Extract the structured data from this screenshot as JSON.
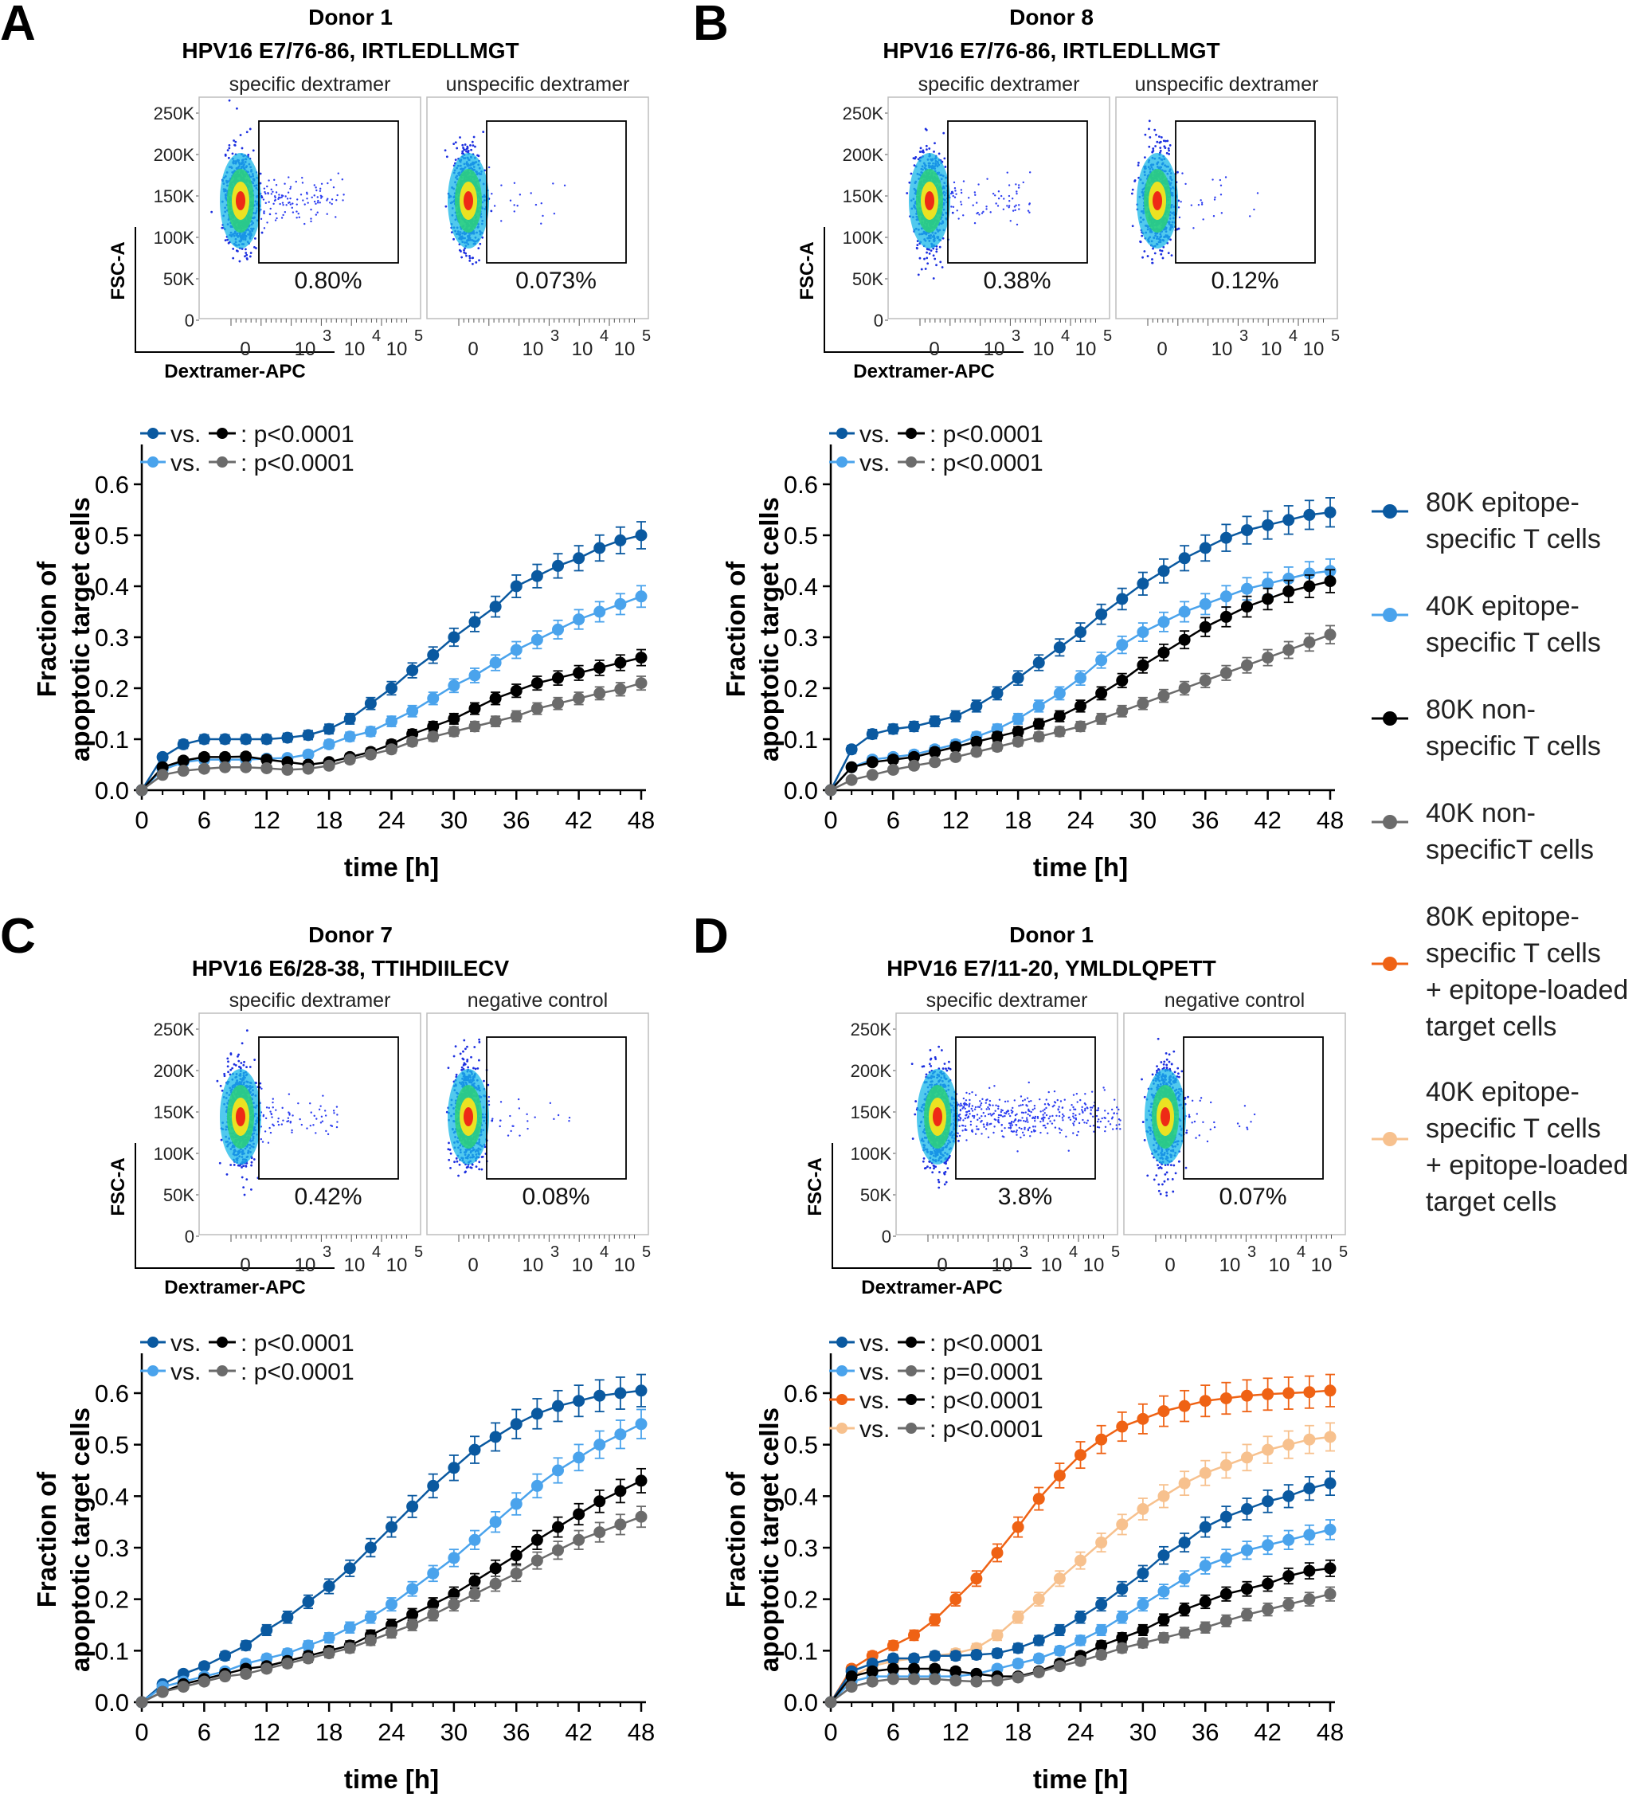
{
  "series_styles": {
    "s80_spec": {
      "color": "#0a59a0"
    },
    "s40_spec": {
      "color": "#4aa3ec"
    },
    "s80_non": {
      "color": "#000000"
    },
    "s40_non": {
      "color": "#6b6b6b"
    },
    "s80_load": {
      "color": "#ef6214"
    },
    "s40_load": {
      "color": "#f7c18e"
    }
  },
  "legend": [
    {
      "key": "s80_spec",
      "label": "80K epitope-\nspecific T cells"
    },
    {
      "key": "s40_spec",
      "label": "40K epitope-\nspecific T cells"
    },
    {
      "key": "s80_non",
      "label": "80K non-\nspecific T cells"
    },
    {
      "key": "s40_non",
      "label": "40K non-\nspecificT cells"
    },
    {
      "key": "s80_load",
      "label": "80K epitope-\nspecific T cells\n+ epitope-loaded\ntarget cells"
    },
    {
      "key": "s40_load",
      "label": "40K epitope-\nspecific T cells\n+ epitope-loaded\ntarget cells"
    }
  ],
  "flow_axes": {
    "ylabel": "FSC-A",
    "xlabel": "Dextramer-APC",
    "y_ticks": [
      "250K",
      "200K",
      "150K",
      "100K",
      "50K",
      "0"
    ],
    "x_ticks": [
      {
        "base": "0",
        "exp": ""
      },
      {
        "base": "10",
        "exp": "3"
      },
      {
        "base": "10",
        "exp": "4"
      },
      {
        "base": "10",
        "exp": "5"
      }
    ]
  },
  "panels": [
    {
      "letter": "A",
      "donor": "Donor 1",
      "epitope": "HPV16 E7/76-86, IRTLEDLLMGT",
      "flow": [
        {
          "label": "specific dextramer",
          "percent": "0.80%"
        },
        {
          "label": "unspecific dextramer",
          "percent": "0.073%"
        }
      ],
      "stats": [
        {
          "a": "s80_spec",
          "b": "s80_non",
          "text": ": p<0.0001"
        },
        {
          "a": "s40_spec",
          "b": "s40_non",
          "text": ": p<0.0001"
        }
      ]
    },
    {
      "letter": "B",
      "donor": "Donor 8",
      "epitope": "HPV16 E7/76-86, IRTLEDLLMGT",
      "flow": [
        {
          "label": "specific dextramer",
          "percent": "0.38%"
        },
        {
          "label": "unspecific dextramer",
          "percent": "0.12%"
        }
      ],
      "stats": [
        {
          "a": "s80_spec",
          "b": "s80_non",
          "text": ": p<0.0001"
        },
        {
          "a": "s40_spec",
          "b": "s40_non",
          "text": ": p<0.0001"
        }
      ]
    },
    {
      "letter": "C",
      "donor": "Donor 7",
      "epitope": "HPV16 E6/28-38, TTIHDIILECV",
      "flow": [
        {
          "label": "specific dextramer",
          "percent": "0.42%"
        },
        {
          "label": "negative control",
          "percent": "0.08%"
        }
      ],
      "stats": [
        {
          "a": "s80_spec",
          "b": "s80_non",
          "text": ": p<0.0001"
        },
        {
          "a": "s40_spec",
          "b": "s40_non",
          "text": ": p<0.0001"
        }
      ]
    },
    {
      "letter": "D",
      "donor": "Donor 1",
      "epitope": "HPV16 E7/11-20, YMLDLQPETT",
      "flow": [
        {
          "label": "specific dextramer",
          "percent": "3.8%"
        },
        {
          "label": "negative control",
          "percent": "0.07%"
        }
      ],
      "stats": [
        {
          "a": "s80_spec",
          "b": "s80_non",
          "text": ": p<0.0001"
        },
        {
          "a": "s40_spec",
          "b": "s40_non",
          "text": ": p=0.0001"
        },
        {
          "a": "s80_load",
          "b": "s80_non",
          "text": ": p<0.0001"
        },
        {
          "a": "s40_load",
          "b": "s40_non",
          "text": ": p<0.0001"
        }
      ]
    }
  ],
  "chart_data": [
    {
      "panel": "A",
      "type": "line",
      "xlabel": "time [h]",
      "ylabel": "Fraction of\napoptotic target cells",
      "xlim": [
        0,
        48
      ],
      "ylim": [
        0,
        0.6
      ],
      "xticks": [
        0,
        6,
        12,
        18,
        24,
        30,
        36,
        42,
        48
      ],
      "yticks": [
        0.0,
        0.1,
        0.2,
        0.3,
        0.4,
        0.5,
        0.6
      ],
      "x": [
        0,
        2,
        4,
        6,
        8,
        10,
        12,
        14,
        16,
        18,
        20,
        22,
        24,
        26,
        28,
        30,
        32,
        34,
        36,
        38,
        40,
        42,
        44,
        46,
        48
      ],
      "series": [
        {
          "key": "s80_spec",
          "values": [
            0,
            0.065,
            0.09,
            0.1,
            0.1,
            0.1,
            0.1,
            0.103,
            0.108,
            0.12,
            0.14,
            0.17,
            0.2,
            0.235,
            0.265,
            0.3,
            0.33,
            0.36,
            0.4,
            0.42,
            0.44,
            0.455,
            0.475,
            0.49,
            0.5
          ]
        },
        {
          "key": "s40_spec",
          "values": [
            0,
            0.04,
            0.055,
            0.06,
            0.06,
            0.06,
            0.062,
            0.063,
            0.07,
            0.09,
            0.105,
            0.115,
            0.135,
            0.155,
            0.18,
            0.205,
            0.225,
            0.25,
            0.275,
            0.295,
            0.315,
            0.335,
            0.35,
            0.365,
            0.38
          ]
        },
        {
          "key": "s80_non",
          "values": [
            0,
            0.045,
            0.058,
            0.065,
            0.065,
            0.066,
            0.06,
            0.055,
            0.05,
            0.055,
            0.065,
            0.075,
            0.09,
            0.11,
            0.125,
            0.14,
            0.16,
            0.18,
            0.195,
            0.21,
            0.22,
            0.23,
            0.24,
            0.25,
            0.26
          ]
        },
        {
          "key": "s40_non",
          "values": [
            0,
            0.03,
            0.038,
            0.042,
            0.045,
            0.045,
            0.043,
            0.04,
            0.042,
            0.048,
            0.06,
            0.07,
            0.08,
            0.095,
            0.105,
            0.115,
            0.125,
            0.135,
            0.145,
            0.16,
            0.17,
            0.18,
            0.19,
            0.198,
            0.21
          ]
        }
      ]
    },
    {
      "panel": "B",
      "type": "line",
      "xlabel": "time [h]",
      "ylabel": "Fraction of\napoptotic target cells",
      "xlim": [
        0,
        48
      ],
      "ylim": [
        0,
        0.6
      ],
      "xticks": [
        0,
        6,
        12,
        18,
        24,
        30,
        36,
        42,
        48
      ],
      "yticks": [
        0.0,
        0.1,
        0.2,
        0.3,
        0.4,
        0.5,
        0.6
      ],
      "x": [
        0,
        2,
        4,
        6,
        8,
        10,
        12,
        14,
        16,
        18,
        20,
        22,
        24,
        26,
        28,
        30,
        32,
        34,
        36,
        38,
        40,
        42,
        44,
        46,
        48
      ],
      "series": [
        {
          "key": "s80_spec",
          "values": [
            0,
            0.08,
            0.11,
            0.12,
            0.125,
            0.135,
            0.145,
            0.165,
            0.19,
            0.22,
            0.25,
            0.28,
            0.31,
            0.345,
            0.375,
            0.405,
            0.43,
            0.455,
            0.475,
            0.495,
            0.51,
            0.52,
            0.53,
            0.54,
            0.545
          ]
        },
        {
          "key": "s40_spec",
          "values": [
            0,
            0.045,
            0.06,
            0.065,
            0.07,
            0.08,
            0.09,
            0.105,
            0.12,
            0.14,
            0.165,
            0.19,
            0.22,
            0.255,
            0.285,
            0.31,
            0.33,
            0.35,
            0.365,
            0.38,
            0.395,
            0.405,
            0.415,
            0.425,
            0.43
          ]
        },
        {
          "key": "s80_non",
          "values": [
            0,
            0.045,
            0.055,
            0.06,
            0.065,
            0.075,
            0.085,
            0.095,
            0.105,
            0.115,
            0.13,
            0.145,
            0.165,
            0.19,
            0.215,
            0.245,
            0.27,
            0.295,
            0.32,
            0.34,
            0.36,
            0.375,
            0.39,
            0.4,
            0.41
          ]
        },
        {
          "key": "s40_non",
          "values": [
            0,
            0.02,
            0.03,
            0.04,
            0.048,
            0.055,
            0.065,
            0.075,
            0.085,
            0.095,
            0.105,
            0.115,
            0.125,
            0.14,
            0.155,
            0.17,
            0.185,
            0.2,
            0.215,
            0.23,
            0.245,
            0.26,
            0.275,
            0.29,
            0.305
          ]
        }
      ]
    },
    {
      "panel": "C",
      "type": "line",
      "xlabel": "time [h]",
      "ylabel": "Fraction of\napoptotic target cells",
      "xlim": [
        0,
        48
      ],
      "ylim": [
        0,
        0.6
      ],
      "xticks": [
        0,
        6,
        12,
        18,
        24,
        30,
        36,
        42,
        48
      ],
      "yticks": [
        0.0,
        0.1,
        0.2,
        0.3,
        0.4,
        0.5,
        0.6
      ],
      "x": [
        0,
        2,
        4,
        6,
        8,
        10,
        12,
        14,
        16,
        18,
        20,
        22,
        24,
        26,
        28,
        30,
        32,
        34,
        36,
        38,
        40,
        42,
        44,
        46,
        48
      ],
      "series": [
        {
          "key": "s80_spec",
          "values": [
            0,
            0.035,
            0.055,
            0.07,
            0.09,
            0.11,
            0.14,
            0.165,
            0.195,
            0.225,
            0.26,
            0.3,
            0.34,
            0.38,
            0.42,
            0.455,
            0.49,
            0.515,
            0.54,
            0.56,
            0.575,
            0.585,
            0.595,
            0.6,
            0.605
          ]
        },
        {
          "key": "s40_spec",
          "values": [
            0,
            0.03,
            0.04,
            0.05,
            0.06,
            0.075,
            0.085,
            0.095,
            0.11,
            0.125,
            0.145,
            0.165,
            0.19,
            0.22,
            0.25,
            0.28,
            0.315,
            0.35,
            0.385,
            0.42,
            0.45,
            0.475,
            0.5,
            0.52,
            0.54
          ]
        },
        {
          "key": "s80_non",
          "values": [
            0,
            0.02,
            0.035,
            0.045,
            0.055,
            0.065,
            0.07,
            0.08,
            0.09,
            0.1,
            0.11,
            0.13,
            0.15,
            0.17,
            0.19,
            0.21,
            0.235,
            0.26,
            0.285,
            0.315,
            0.34,
            0.365,
            0.39,
            0.41,
            0.43
          ]
        },
        {
          "key": "s40_non",
          "values": [
            0,
            0.02,
            0.03,
            0.04,
            0.05,
            0.055,
            0.065,
            0.075,
            0.085,
            0.095,
            0.105,
            0.12,
            0.135,
            0.15,
            0.17,
            0.19,
            0.21,
            0.23,
            0.25,
            0.275,
            0.295,
            0.315,
            0.33,
            0.345,
            0.36
          ]
        }
      ]
    },
    {
      "panel": "D",
      "type": "line",
      "xlabel": "time [h]",
      "ylabel": "Fraction of\napoptotic target cells",
      "xlim": [
        0,
        48
      ],
      "ylim": [
        0,
        0.6
      ],
      "xticks": [
        0,
        6,
        12,
        18,
        24,
        30,
        36,
        42,
        48
      ],
      "yticks": [
        0.0,
        0.1,
        0.2,
        0.3,
        0.4,
        0.5,
        0.6
      ],
      "x": [
        0,
        2,
        4,
        6,
        8,
        10,
        12,
        14,
        16,
        18,
        20,
        22,
        24,
        26,
        28,
        30,
        32,
        34,
        36,
        38,
        40,
        42,
        44,
        46,
        48
      ],
      "series": [
        {
          "key": "s80_load",
          "values": [
            0,
            0.065,
            0.09,
            0.11,
            0.13,
            0.16,
            0.2,
            0.24,
            0.29,
            0.34,
            0.395,
            0.44,
            0.48,
            0.51,
            0.535,
            0.55,
            0.565,
            0.575,
            0.585,
            0.59,
            0.595,
            0.598,
            0.6,
            0.602,
            0.605
          ]
        },
        {
          "key": "s40_load",
          "values": [
            0,
            0.05,
            0.07,
            0.08,
            0.085,
            0.09,
            0.095,
            0.105,
            0.13,
            0.165,
            0.2,
            0.24,
            0.275,
            0.31,
            0.345,
            0.375,
            0.4,
            0.425,
            0.445,
            0.46,
            0.475,
            0.49,
            0.5,
            0.51,
            0.515
          ]
        },
        {
          "key": "s80_spec",
          "values": [
            0,
            0.06,
            0.075,
            0.085,
            0.085,
            0.09,
            0.09,
            0.092,
            0.095,
            0.105,
            0.12,
            0.14,
            0.165,
            0.19,
            0.22,
            0.25,
            0.285,
            0.31,
            0.34,
            0.36,
            0.375,
            0.39,
            0.4,
            0.415,
            0.425
          ]
        },
        {
          "key": "s40_spec",
          "values": [
            0,
            0.04,
            0.05,
            0.05,
            0.05,
            0.05,
            0.05,
            0.055,
            0.065,
            0.075,
            0.085,
            0.1,
            0.12,
            0.14,
            0.165,
            0.19,
            0.215,
            0.24,
            0.265,
            0.28,
            0.295,
            0.305,
            0.315,
            0.325,
            0.335
          ]
        },
        {
          "key": "s80_non",
          "values": [
            0,
            0.05,
            0.06,
            0.065,
            0.065,
            0.065,
            0.06,
            0.055,
            0.05,
            0.05,
            0.06,
            0.075,
            0.09,
            0.11,
            0.125,
            0.14,
            0.16,
            0.18,
            0.195,
            0.21,
            0.22,
            0.23,
            0.245,
            0.255,
            0.26
          ]
        },
        {
          "key": "s40_non",
          "values": [
            0,
            0.03,
            0.04,
            0.045,
            0.045,
            0.045,
            0.042,
            0.04,
            0.042,
            0.048,
            0.058,
            0.07,
            0.08,
            0.092,
            0.105,
            0.115,
            0.125,
            0.135,
            0.145,
            0.158,
            0.17,
            0.18,
            0.19,
            0.2,
            0.21
          ]
        }
      ]
    }
  ]
}
